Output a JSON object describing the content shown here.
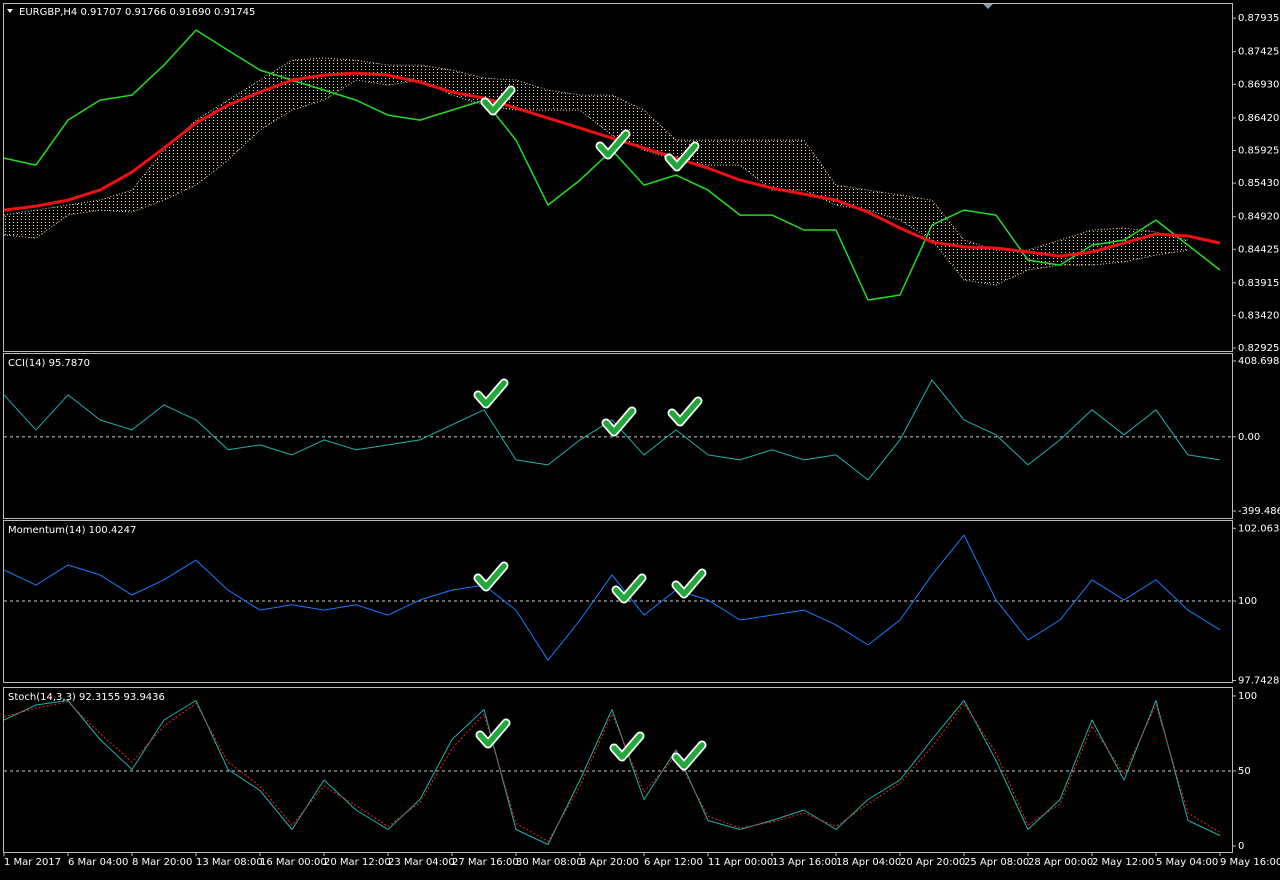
{
  "chart_data": [
    {
      "type": "line",
      "title": "EURGBP,H4 0.91707 0.91766 0.91690 0.91745",
      "x": [
        0,
        8,
        16,
        24,
        32,
        40,
        48,
        56,
        64,
        72,
        80,
        88,
        96,
        104,
        112,
        120,
        128,
        136,
        144,
        152,
        160,
        168,
        176,
        184,
        192,
        200,
        208,
        216,
        224,
        232,
        240,
        248,
        256,
        264,
        272,
        280,
        288,
        296,
        304
      ],
      "xlim": [
        0,
        307
      ],
      "ylim": [
        0.8288,
        0.8815
      ],
      "yticks": [
        {
          "value": 0.87935,
          "label": "0.87935"
        },
        {
          "value": 0.87425,
          "label": "0.87425"
        },
        {
          "value": 0.8693,
          "label": "0.86930"
        },
        {
          "value": 0.8642,
          "label": "0.86420"
        },
        {
          "value": 0.85925,
          "label": "0.85925"
        },
        {
          "value": 0.8543,
          "label": "0.85430"
        },
        {
          "value": 0.8492,
          "label": "0.84920"
        },
        {
          "value": 0.84425,
          "label": "0.84425"
        },
        {
          "value": 0.83915,
          "label": "0.83915"
        },
        {
          "value": 0.8342,
          "label": "0.83420"
        },
        {
          "value": 0.82925,
          "label": "0.82925"
        }
      ],
      "cloud": {
        "color": "#f2d9c0",
        "upper": [
          0.84945,
          0.8502,
          0.85096,
          0.85172,
          0.85324,
          0.85931,
          0.86387,
          0.8669,
          0.86994,
          0.87297,
          0.87328,
          0.87297,
          0.87222,
          0.87222,
          0.87146,
          0.87024,
          0.86994,
          0.86842,
          0.86766,
          0.86766,
          0.86538,
          0.86083,
          0.86083,
          0.86083,
          0.86083,
          0.86083,
          0.854,
          0.85324,
          0.85248,
          0.85172,
          0.84565,
          0.84413,
          0.84413,
          0.84565,
          0.84717,
          0.84747,
          0.84686,
          0.84565,
          null
        ],
        "lower": [
          0.84641,
          0.84595,
          0.84945,
          0.8502,
          0.8499,
          0.85172,
          0.854,
          0.85779,
          0.86235,
          0.86538,
          0.8669,
          0.86994,
          0.86918,
          0.86994,
          0.86766,
          0.86614,
          0.86538,
          0.86538,
          0.86538,
          0.86159,
          0.85931,
          0.85779,
          0.85704,
          0.85704,
          0.85324,
          0.85324,
          0.85096,
          0.8502,
          0.84869,
          0.84565,
          0.83958,
          0.83882,
          0.8411,
          0.84186,
          0.84186,
          0.84231,
          0.84337,
          0.84413,
          null
        ]
      },
      "series": [
        {
          "color": "#22dd22",
          "line_width": 1.5,
          "values": [
            0.8581,
            0.85703,
            0.86387,
            0.8669,
            0.86766,
            0.87222,
            0.87753,
            0.87449,
            0.87146,
            0.86994,
            0.86842,
            0.8669,
            0.86462,
            0.86387,
            0.86538,
            0.8669,
            0.86083,
            0.85096,
            0.85476,
            0.85931,
            0.854,
            0.85552,
            0.85324,
            0.84944,
            0.84944,
            0.84717,
            0.84717,
            0.83654,
            0.8373,
            0.84792,
            0.8502,
            0.84944,
            0.84261,
            0.84185,
            0.84489,
            0.84565,
            0.84868,
            0.84489,
            0.84109
          ]
        },
        {
          "color": "#ee1111",
          "line_width": 3,
          "values": [
            0.8502,
            0.85081,
            0.85172,
            0.85324,
            0.85597,
            0.85962,
            0.86341,
            0.86614,
            0.86812,
            0.86994,
            0.8707,
            0.871,
            0.8707,
            0.86963,
            0.86812,
            0.86721,
            0.86569,
            0.86417,
            0.86265,
            0.86113,
            0.85962,
            0.8581,
            0.85658,
            0.85476,
            0.85354,
            0.85263,
            0.85172,
            0.8499,
            0.84747,
            0.84535,
            0.84459,
            0.84444,
            0.84383,
            0.84322,
            0.84383,
            0.84519,
            0.84656,
            0.84626,
            0.84519
          ]
        }
      ]
    },
    {
      "type": "line",
      "title": "CCI(14) 95.7870",
      "x": [
        0,
        8,
        16,
        24,
        32,
        40,
        48,
        56,
        64,
        72,
        80,
        88,
        96,
        104,
        112,
        120,
        128,
        136,
        144,
        152,
        160,
        168,
        176,
        184,
        192,
        200,
        208,
        216,
        224,
        232,
        240,
        248,
        256,
        264,
        272,
        280,
        288,
        296,
        304
      ],
      "xlim": [
        0,
        307
      ],
      "ylim": [
        -437.2,
        446.4
      ],
      "yticks": [
        408.6984,
        {
          "value": 0,
          "label": "0.00"
        },
        -399.4864
      ],
      "level_lines": [
        0
      ],
      "series": [
        {
          "color": "#20b2aa",
          "line_width": 1,
          "values": [
            226.3,
            37.7,
            226.3,
            91.6,
            37.7,
            172.4,
            91.6,
            -70.0,
            -43.1,
            -97.0,
            -16.2,
            -70.0,
            -43.1,
            -16.2,
            64.7,
            145.5,
            -123.9,
            -150.9,
            -16.2,
            91.6,
            -97.0,
            37.7,
            -97.0,
            -123.9,
            -70.0,
            -123.9,
            -97.0,
            -231.7,
            -16.2,
            307.1,
            91.6,
            10.8,
            -150.9,
            -16.2,
            145.5,
            10.8,
            145.5,
            -97.0,
            -123.9
          ]
        }
      ]
    },
    {
      "type": "line",
      "title": "Momentum(14) 100.4247",
      "x": [
        0,
        8,
        16,
        24,
        32,
        40,
        48,
        56,
        64,
        72,
        80,
        88,
        96,
        104,
        112,
        120,
        128,
        136,
        144,
        152,
        160,
        168,
        176,
        184,
        192,
        200,
        208,
        216,
        224,
        232,
        240,
        248,
        256,
        264,
        272,
        280,
        288,
        296,
        304
      ],
      "xlim": [
        0,
        307
      ],
      "ylim": [
        97.7,
        102.27
      ],
      "yticks": [
        102.0634,
        100,
        97.7428
      ],
      "level_lines": [
        100
      ],
      "series": [
        {
          "color": "#1e78ff",
          "line_width": 1,
          "values": [
            100.88,
            100.45,
            101.02,
            100.74,
            100.17,
            100.6,
            101.16,
            100.31,
            99.74,
            99.89,
            99.74,
            99.89,
            99.6,
            100.03,
            100.31,
            100.45,
            99.74,
            98.32,
            99.46,
            100.74,
            99.6,
            100.31,
            100.03,
            99.46,
            99.6,
            99.74,
            99.32,
            98.75,
            99.46,
            100.74,
            101.87,
            100.03,
            98.89,
            99.46,
            100.6,
            100.03,
            100.6,
            99.74,
            99.18
          ]
        }
      ]
    },
    {
      "type": "line",
      "title": "Stoch(14,3,3) 92.3155 93.9436",
      "x": [
        0,
        8,
        16,
        24,
        32,
        40,
        48,
        56,
        64,
        72,
        80,
        88,
        96,
        104,
        112,
        120,
        128,
        136,
        144,
        152,
        160,
        168,
        176,
        184,
        192,
        200,
        208,
        216,
        224,
        232,
        240,
        248,
        256,
        264,
        272,
        280,
        288,
        296,
        304
      ],
      "xlim": [
        0,
        307
      ],
      "ylim": [
        -4,
        105.3
      ],
      "yticks": [
        100,
        50,
        0
      ],
      "level_lines": [
        50
      ],
      "xticks": [
        {
          "value": 0,
          "label": "1 Mar 2017"
        },
        {
          "value": 16,
          "label": "6 Mar 04:00"
        },
        {
          "value": 32,
          "label": "8 Mar 20:00"
        },
        {
          "value": 48,
          "label": "13 Mar 08:00"
        },
        {
          "value": 64,
          "label": "16 Mar 00:00"
        },
        {
          "value": 80,
          "label": "20 Mar 12:00"
        },
        {
          "value": 96,
          "label": "23 Mar 04:00"
        },
        {
          "value": 112,
          "label": "27 Mar 16:00"
        },
        {
          "value": 128,
          "label": "30 Mar 08:00"
        },
        {
          "value": 144,
          "label": "3 Apr 20:00"
        },
        {
          "value": 160,
          "label": "6 Apr 12:00"
        },
        {
          "value": 176,
          "label": "11 Apr 00:00"
        },
        {
          "value": 192,
          "label": "13 Apr 16:00"
        },
        {
          "value": 208,
          "label": "18 Apr 04:00"
        },
        {
          "value": 224,
          "label": "20 Apr 20:00"
        },
        {
          "value": 240,
          "label": "25 Apr 08:00"
        },
        {
          "value": 256,
          "label": "28 Apr 00:00"
        },
        {
          "value": 272,
          "label": "2 May 12:00"
        },
        {
          "value": 288,
          "label": "5 May 04:00"
        },
        {
          "value": 304,
          "label": "9 May 16:00"
        }
      ],
      "series": [
        {
          "color": "#20b2aa",
          "line_width": 1,
          "values": [
            84,
            94,
            97,
            71,
            51,
            84,
            97,
            51,
            37,
            11,
            44,
            24,
            11,
            31,
            71,
            91,
            11,
            1,
            44,
            91,
            31,
            64,
            17,
            11,
            17,
            24,
            11,
            31,
            44,
            71,
            97,
            57,
            11,
            31,
            84,
            44,
            97,
            17,
            7
          ]
        },
        {
          "color": "#ee2222",
          "line_width": 1,
          "dashed": true,
          "values": [
            86,
            92,
            96,
            75,
            56,
            80,
            95,
            56,
            40,
            14,
            40,
            27,
            13,
            29,
            65,
            88,
            15,
            3,
            40,
            88,
            36,
            60,
            20,
            12,
            16,
            22,
            13,
            28,
            42,
            66,
            95,
            62,
            14,
            28,
            80,
            48,
            94,
            22,
            9
          ]
        }
      ]
    }
  ]
}
